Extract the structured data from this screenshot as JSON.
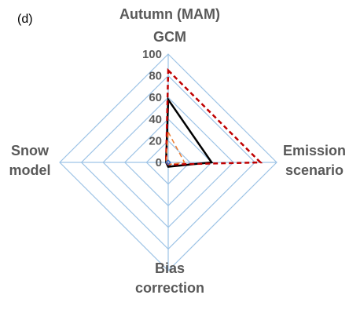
{
  "panel_label": "(d)",
  "chart_data": {
    "type": "radar",
    "title_line1": "Autumn (MAM)",
    "axes": [
      {
        "key": "gcm",
        "label_lines": [
          "GCM"
        ]
      },
      {
        "key": "emission",
        "label_lines": [
          "Emission",
          "scenario"
        ]
      },
      {
        "key": "bias",
        "label_lines": [
          "Bias",
          "correction"
        ]
      },
      {
        "key": "snow",
        "label_lines": [
          "Snow",
          "model"
        ]
      }
    ],
    "r_ticks": [
      0,
      20,
      40,
      60,
      80,
      100
    ],
    "r_range": [
      0,
      100
    ],
    "grid": true,
    "series": [
      {
        "color": "#000000",
        "dash": "solid",
        "width": 2.5,
        "values": [
          58,
          40,
          4,
          2
        ]
      },
      {
        "color": "#c00000",
        "dash": "dashed",
        "width": 2.5,
        "values": [
          85,
          85,
          2,
          2
        ]
      },
      {
        "color": "#ed7d31",
        "dash": "dashed",
        "width": 1.5,
        "values": [
          28,
          15,
          2,
          2
        ]
      },
      {
        "color": "#4472c4",
        "dash": "solid",
        "width": 1.5,
        "values": [
          2,
          2,
          2,
          2
        ]
      }
    ]
  }
}
